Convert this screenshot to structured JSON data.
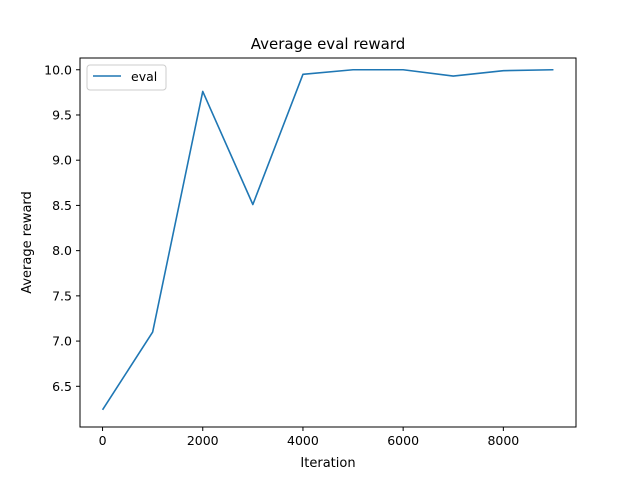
{
  "colors": {
    "series": "#1f77b4",
    "axes": "#000000",
    "background": "#ffffff",
    "legend_border": "#cccccc"
  },
  "chart_data": {
    "type": "line",
    "title": "Average eval reward",
    "xlabel": "Iteration",
    "ylabel": "Average reward",
    "xlim": [
      -450,
      9450
    ],
    "ylim": [
      6.05,
      10.13
    ],
    "xticks": [
      0,
      2000,
      4000,
      6000,
      8000
    ],
    "yticks": [
      6.5,
      7.0,
      7.5,
      8.0,
      8.5,
      9.0,
      9.5,
      10.0
    ],
    "grid": false,
    "legend_position": "upper-left",
    "series": [
      {
        "name": "eval",
        "x": [
          0,
          1000,
          2000,
          3000,
          4000,
          5000,
          6000,
          7000,
          8000,
          9000
        ],
        "y": [
          6.24,
          7.1,
          9.76,
          8.51,
          9.95,
          10.0,
          10.0,
          9.93,
          9.99,
          10.0
        ]
      }
    ]
  }
}
